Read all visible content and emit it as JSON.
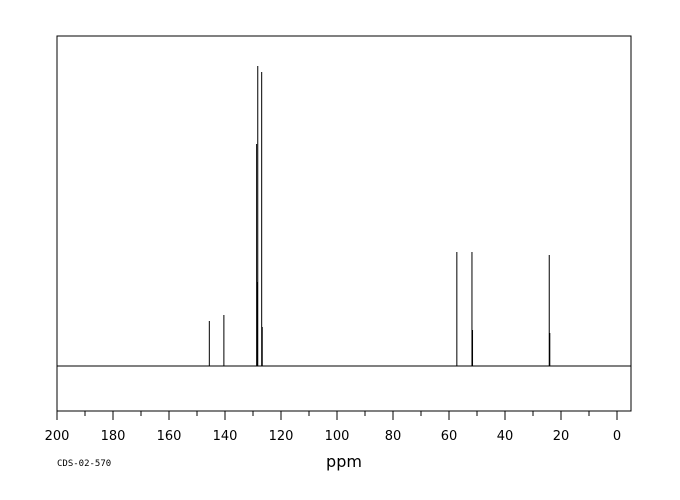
{
  "chart_data": {
    "type": "line",
    "title": "",
    "xlabel": "ppm",
    "ylabel": "",
    "xlim": [
      200,
      -5
    ],
    "reversed_x_axis": true,
    "xticks": [
      200,
      180,
      160,
      140,
      120,
      100,
      80,
      60,
      40,
      20,
      0
    ],
    "minor_tick_step": 10,
    "grid": false,
    "legend": "none",
    "baseline_fraction": 0.12,
    "series": [
      {
        "peaks": [
          {
            "ppm": 145.6,
            "height": 0.15
          },
          {
            "ppm": 140.4,
            "height": 0.17
          },
          {
            "ppm": 128.7,
            "height": 0.74
          },
          {
            "ppm": 128.5,
            "height": 0.28
          },
          {
            "ppm": 128.3,
            "height": 1.0
          },
          {
            "ppm": 126.9,
            "height": 0.98
          },
          {
            "ppm": 126.7,
            "height": 0.13
          },
          {
            "ppm": 57.2,
            "height": 0.38
          },
          {
            "ppm": 51.8,
            "height": 0.38
          },
          {
            "ppm": 51.6,
            "height": 0.12
          },
          {
            "ppm": 24.2,
            "height": 0.37
          },
          {
            "ppm": 24.0,
            "height": 0.11
          }
        ]
      }
    ],
    "colors": {
      "line": "#000000",
      "frame": "#000000"
    }
  },
  "footer": {
    "code": "CDS-02-570"
  }
}
